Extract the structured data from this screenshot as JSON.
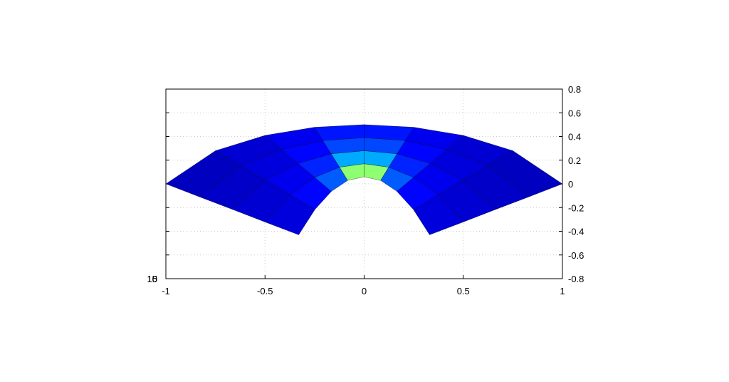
{
  "chart_data": {
    "type": "surface",
    "xlim": [
      -1,
      1
    ],
    "ylim": [
      -0.8,
      0.8
    ],
    "xticks": [
      -1,
      -0.5,
      0,
      0.5,
      1
    ],
    "yticks": [
      0.8,
      0.6,
      0.4,
      0.2,
      0,
      -0.2,
      -0.4,
      -0.6,
      -0.8
    ],
    "zlim": [
      0,
      18
    ],
    "zticks": [
      0,
      5,
      10,
      15
    ],
    "grid": true,
    "colormap": "jet",
    "x": [
      [
        -0.33,
        -0.248,
        -0.165,
        -0.083,
        0,
        0.083,
        0.165,
        0.248,
        0.33
      ],
      [
        -0.498,
        -0.373,
        -0.249,
        -0.124,
        0,
        0.124,
        0.249,
        0.373,
        0.498
      ],
      [
        -0.665,
        -0.499,
        -0.333,
        -0.166,
        0,
        0.166,
        0.333,
        0.499,
        0.665
      ],
      [
        -0.833,
        -0.624,
        -0.416,
        -0.208,
        0,
        0.208,
        0.416,
        0.624,
        0.833
      ],
      [
        -1,
        -0.75,
        -0.5,
        -0.25,
        0,
        0.25,
        0.5,
        0.75,
        1
      ]
    ],
    "y": [
      [
        -0.43,
        -0.216,
        -0.063,
        0.029,
        0.06,
        0.029,
        -0.063,
        -0.216,
        -0.43
      ],
      [
        -0.323,
        -0.092,
        0.055,
        0.141,
        0.17,
        0.141,
        0.055,
        -0.092,
        -0.323
      ],
      [
        -0.215,
        0.032,
        0.173,
        0.254,
        0.28,
        0.254,
        0.173,
        0.032,
        -0.215
      ],
      [
        -0.108,
        0.156,
        0.291,
        0.366,
        0.39,
        0.366,
        0.291,
        0.156,
        -0.108
      ],
      [
        0,
        0.28,
        0.409,
        0.478,
        0.5,
        0.478,
        0.409,
        0.28,
        0
      ]
    ],
    "z": [
      [
        1.5,
        2,
        3,
        6,
        18,
        6,
        3,
        2,
        1.5
      ],
      [
        1.3,
        1.8,
        2.5,
        4,
        9,
        4,
        2.5,
        1.8,
        1.3
      ],
      [
        1.2,
        1.5,
        2,
        3,
        5,
        3,
        2,
        1.5,
        1.2
      ],
      [
        1.1,
        1.3,
        1.8,
        2.5,
        3.5,
        2.5,
        1.8,
        1.3,
        1.1
      ],
      [
        1,
        1.2,
        1.5,
        2,
        2.5,
        2,
        1.5,
        1.2,
        1
      ]
    ]
  }
}
